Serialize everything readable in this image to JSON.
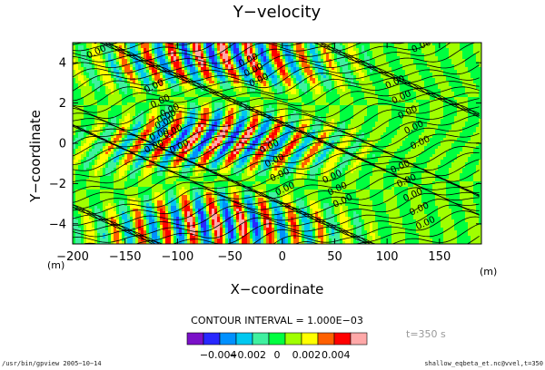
{
  "chart_data": {
    "type": "heatmap",
    "title": "Y−velocity",
    "xlabel": "X−coordinate",
    "ylabel": "Y−coordinate",
    "x_unit": "(m)",
    "y_unit": "(m)",
    "xlim": [
      -200,
      190
    ],
    "ylim": [
      -5,
      5
    ],
    "x_ticks": [
      -200,
      -150,
      -100,
      -50,
      0,
      50,
      100,
      150
    ],
    "x_tick_labels": [
      "−200",
      "−150",
      "−100",
      "−50",
      "0",
      "50",
      "100",
      "150"
    ],
    "y_ticks": [
      -4,
      -2,
      0,
      2,
      4
    ],
    "y_tick_labels": [
      "−4",
      "−2",
      "0",
      "2",
      "4"
    ],
    "contour_interval_text": "CONTOUR INTERVAL = 1.000E−03",
    "contour_label": "0.00",
    "time_label": "t=350 s",
    "colorbar": {
      "boundaries": [
        -0.005,
        -0.004,
        -0.003,
        -0.002,
        -0.001,
        0,
        0.001,
        0.002,
        0.003,
        0.004,
        0.005
      ],
      "colors": [
        "#7a10c8",
        "#2828ff",
        "#0090ff",
        "#00c8f0",
        "#40f0a0",
        "#00ff40",
        "#a0ff00",
        "#ffff00",
        "#ff6000",
        "#ff0000",
        "#ffa8a8"
      ],
      "tick_labels": [
        "−0.004",
        "−0.002",
        "0",
        "0.002",
        "0.004"
      ]
    }
  },
  "footer": {
    "left": "/usr/bin/gpview   2005−10−14",
    "right": "shallow_eqbeta_et.nc@vvel,t=350"
  }
}
